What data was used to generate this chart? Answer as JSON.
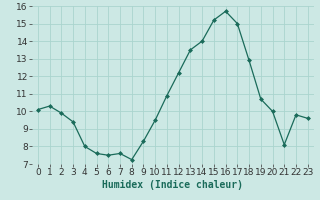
{
  "x": [
    0,
    1,
    2,
    3,
    4,
    5,
    6,
    7,
    8,
    9,
    10,
    11,
    12,
    13,
    14,
    15,
    16,
    17,
    18,
    19,
    20,
    21,
    22,
    23
  ],
  "y": [
    10.1,
    10.3,
    9.9,
    9.4,
    8.0,
    7.6,
    7.5,
    7.6,
    7.25,
    8.3,
    9.5,
    10.9,
    12.2,
    13.5,
    14.0,
    15.2,
    15.7,
    15.0,
    12.9,
    10.7,
    10.0,
    8.1,
    9.8,
    9.6
  ],
  "line_color": "#1a6b5a",
  "marker": "D",
  "marker_size": 2.0,
  "bg_color": "#cce8e4",
  "grid_color": "#aad4ce",
  "xlabel": "Humidex (Indice chaleur)",
  "ylim": [
    7,
    16
  ],
  "yticks": [
    7,
    8,
    9,
    10,
    11,
    12,
    13,
    14,
    15,
    16
  ],
  "xticks": [
    0,
    1,
    2,
    3,
    4,
    5,
    6,
    7,
    8,
    9,
    10,
    11,
    12,
    13,
    14,
    15,
    16,
    17,
    18,
    19,
    20,
    21,
    22,
    23
  ],
  "xlabel_fontsize": 7,
  "tick_fontsize": 6.5,
  "linewidth": 0.9
}
